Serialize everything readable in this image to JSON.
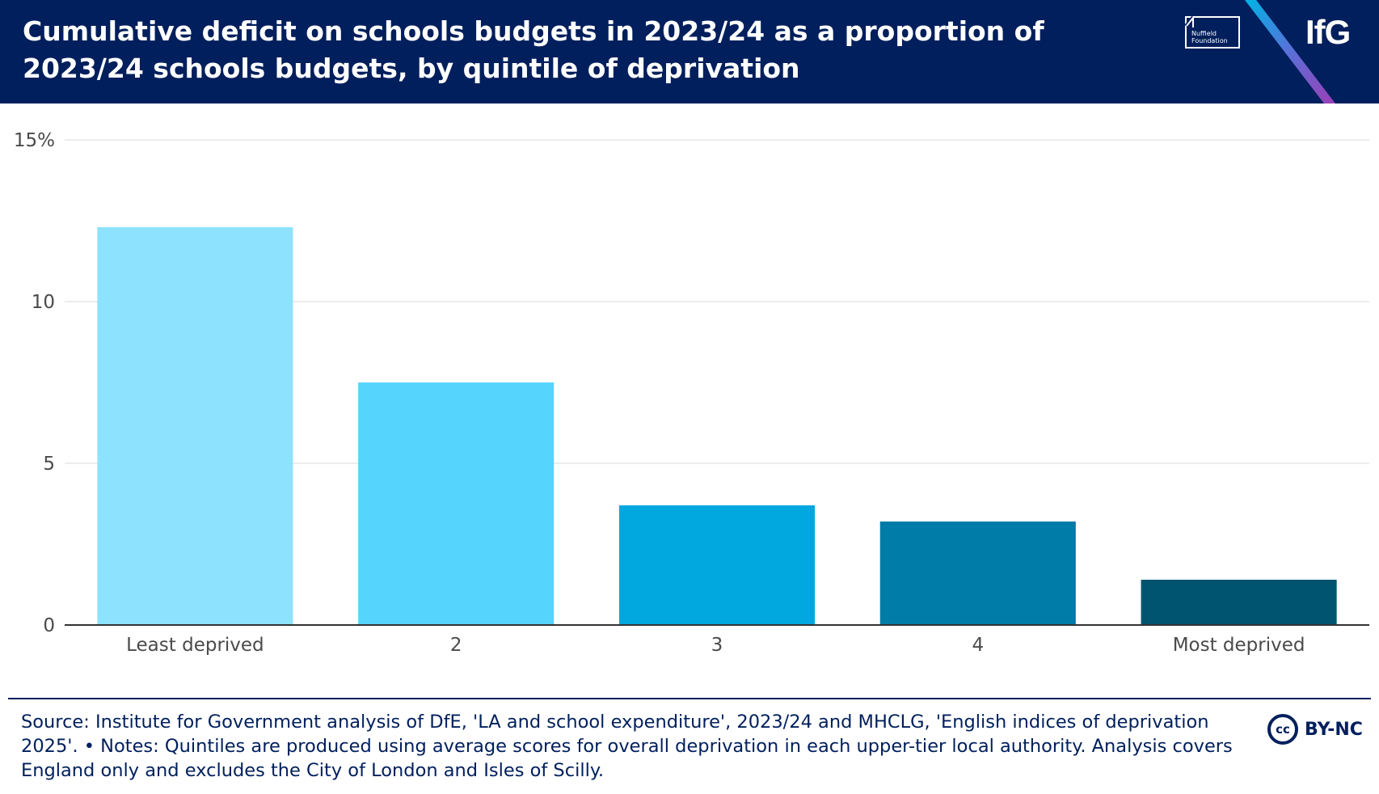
{
  "header": {
    "title": "Cumulative deficit on schools budgets in 2023/24 as a proportion of 2023/24 schools budgets, by quintile of deprivation",
    "nuffield_logo_text": "Nuffield Foundation",
    "ifg_logo_text": "IfG"
  },
  "colors": {
    "header_bg": "#001f5c",
    "bars": [
      "#8de3fd",
      "#55d4fd",
      "#00a8df",
      "#007ca8",
      "#00546f"
    ]
  },
  "chart_data": {
    "type": "bar",
    "title": "Cumulative deficit on schools budgets in 2023/24 as a proportion of 2023/24 schools budgets, by quintile of deprivation",
    "categories": [
      "Least deprived",
      "2",
      "3",
      "4",
      "Most deprived"
    ],
    "values": [
      12.3,
      7.5,
      3.7,
      3.2,
      1.4
    ],
    "ylim": [
      0,
      15
    ],
    "yticks": [
      0,
      5,
      10,
      15
    ],
    "ytick_labels": [
      "0",
      "5",
      "10",
      "15%"
    ],
    "xlabel": "",
    "ylabel": "",
    "grid": true
  },
  "footer": {
    "source": "Source: Institute for Government analysis of DfE, 'LA and school expenditure', 2023/24 and MHCLG, 'English indices of deprivation 2025'. • Notes: Quintiles are produced using average scores for overall deprivation in each upper-tier local authority. Analysis covers England only and excludes the City of London and Isles of Scilly.",
    "license_icon": "cc",
    "license_text": "BY-NC"
  }
}
